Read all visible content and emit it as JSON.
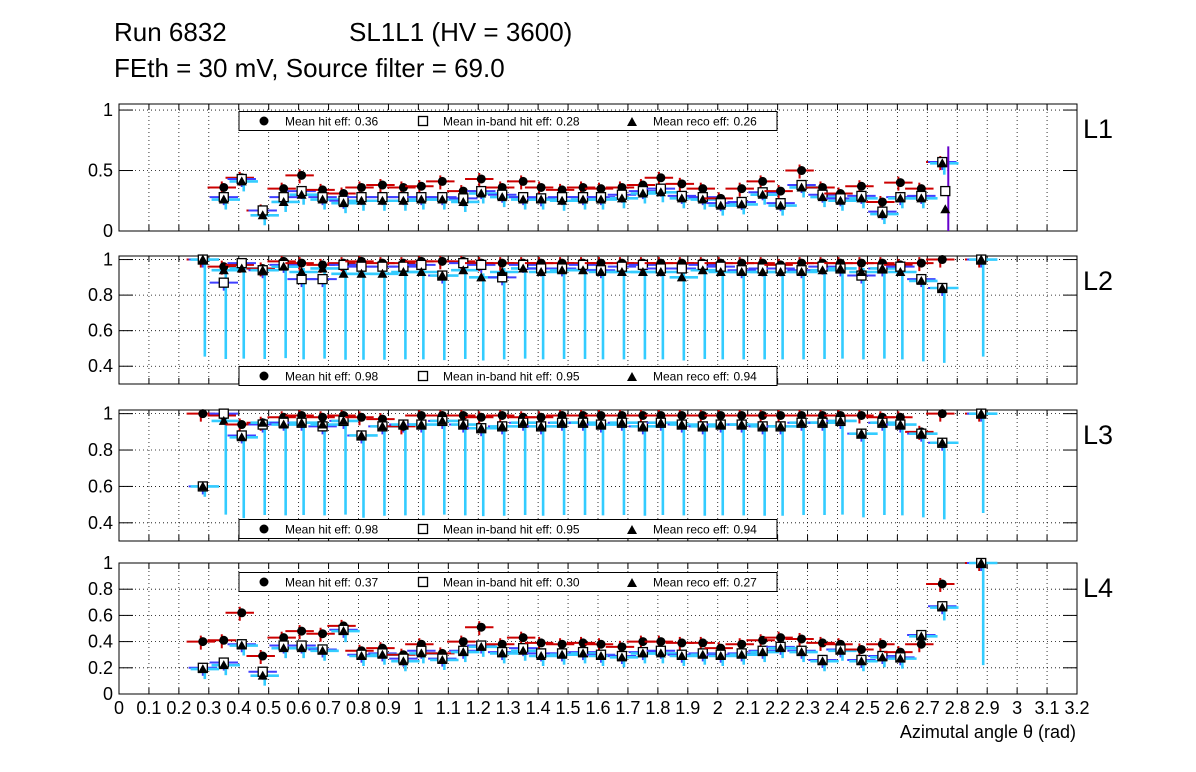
{
  "header": {
    "run": "Run 6832",
    "chamber": "SL1L1 (HV = 3600)",
    "conditions": "FEth = 30 mV, Source filter = 69.0"
  },
  "x_axis": {
    "title": "Azimutal angle θ (rad)",
    "range": [
      0,
      3.2
    ],
    "tick_labels": [
      "0",
      "0.1",
      "0.2",
      "0.3",
      "0.4",
      "0.5",
      "0.6",
      "0.7",
      "0.8",
      "0.9",
      "1",
      "1.1",
      "1.2",
      "1.3",
      "1.4",
      "1.5",
      "1.6",
      "1.7",
      "1.8",
      "1.9",
      "2",
      "2.1",
      "2.2",
      "2.3",
      "2.4",
      "2.5",
      "2.6",
      "2.7",
      "2.8",
      "2.9",
      "3",
      "3.1",
      "3.2"
    ]
  },
  "legend_labels": {
    "hit": "Mean hit  eff:",
    "inband": "Mean in-band hit eff:",
    "reco": "Mean reco eff:"
  },
  "colors": {
    "hit_err": "#cc0000",
    "inband_err": "#3f3fff",
    "reco_err": "#33ccff",
    "extra_err": "#6600cc",
    "marker": "#000000",
    "grid": "#000000"
  },
  "chart_data": [
    {
      "type": "scatter",
      "layer": "L1",
      "ylim": [
        0,
        1.05
      ],
      "y_ticks": [
        "0",
        "0.5",
        "1"
      ],
      "legend": {
        "hit": "0.36",
        "inband": "0.28",
        "reco": "0.26"
      },
      "x": [
        0.35,
        0.41,
        0.48,
        0.55,
        0.61,
        0.68,
        0.75,
        0.81,
        0.88,
        0.95,
        1.01,
        1.08,
        1.15,
        1.21,
        1.28,
        1.35,
        1.41,
        1.48,
        1.55,
        1.61,
        1.68,
        1.75,
        1.81,
        1.88,
        1.95,
        2.01,
        2.08,
        2.15,
        2.21,
        2.28,
        2.35,
        2.41,
        2.48,
        2.55,
        2.61,
        2.68,
        2.75
      ],
      "series": [
        {
          "name": "Mean hit eff",
          "values": [
            0.36,
            0.44,
            0.17,
            0.35,
            0.46,
            0.34,
            0.31,
            0.36,
            0.38,
            0.36,
            0.37,
            0.41,
            0.33,
            0.43,
            0.36,
            0.41,
            0.36,
            0.34,
            0.36,
            0.35,
            0.36,
            0.38,
            0.44,
            0.39,
            0.35,
            0.27,
            0.35,
            0.41,
            0.33,
            0.5,
            0.36,
            0.31,
            0.37,
            0.24,
            0.4,
            0.35,
            0.57
          ]
        },
        {
          "name": "Mean in-band hit eff",
          "values": [
            0.28,
            0.43,
            0.17,
            0.28,
            0.33,
            0.28,
            0.25,
            0.28,
            0.28,
            0.28,
            0.28,
            0.28,
            0.27,
            0.33,
            0.3,
            0.28,
            0.27,
            0.28,
            0.28,
            0.28,
            0.3,
            0.33,
            0.35,
            0.29,
            0.28,
            0.23,
            0.24,
            0.32,
            0.23,
            0.38,
            0.3,
            0.27,
            0.29,
            0.16,
            0.28,
            0.29,
            0.57
          ]
        },
        {
          "name": "Mean reco eff",
          "values": [
            0.26,
            0.41,
            0.13,
            0.24,
            0.3,
            0.26,
            0.23,
            0.25,
            0.25,
            0.25,
            0.26,
            0.26,
            0.24,
            0.31,
            0.28,
            0.26,
            0.26,
            0.25,
            0.26,
            0.26,
            0.27,
            0.31,
            0.32,
            0.27,
            0.26,
            0.21,
            0.22,
            0.3,
            0.21,
            0.36,
            0.28,
            0.25,
            0.27,
            0.14,
            0.27,
            0.27,
            0.56
          ]
        }
      ],
      "extra_points": {
        "x": [
          2.75
        ],
        "hit": [
          0.33
        ],
        "inband": [
          0.33
        ],
        "reco": [
          0.18
        ]
      }
    },
    {
      "type": "scatter",
      "layer": "L2",
      "ylim": [
        0.3,
        1.02
      ],
      "y_ticks": [
        "0.4",
        "0.6",
        "0.8",
        "1"
      ],
      "legend": {
        "hit": "0.98",
        "inband": "0.95",
        "reco": "0.94"
      },
      "x": [
        0.28,
        0.35,
        0.41,
        0.48,
        0.55,
        0.61,
        0.68,
        0.75,
        0.81,
        0.88,
        0.95,
        1.01,
        1.08,
        1.15,
        1.21,
        1.28,
        1.35,
        1.41,
        1.48,
        1.55,
        1.61,
        1.68,
        1.75,
        1.81,
        1.88,
        1.95,
        2.01,
        2.08,
        2.15,
        2.21,
        2.28,
        2.35,
        2.41,
        2.48,
        2.55,
        2.61,
        2.68,
        2.75,
        2.88
      ],
      "series": [
        {
          "name": "Mean hit eff",
          "values": [
            1.0,
            0.96,
            0.97,
            0.95,
            0.99,
            0.98,
            0.97,
            0.98,
            0.99,
            0.98,
            0.98,
            0.99,
            0.99,
            0.99,
            0.98,
            0.98,
            0.98,
            0.98,
            0.98,
            0.98,
            0.98,
            0.98,
            0.98,
            0.98,
            0.98,
            0.98,
            0.98,
            0.98,
            0.98,
            0.97,
            0.98,
            0.98,
            0.98,
            0.98,
            0.98,
            0.97,
            0.98,
            1.0,
            1.0
          ]
        },
        {
          "name": "Mean in-band hit eff",
          "values": [
            1.0,
            0.87,
            0.98,
            0.94,
            0.97,
            0.89,
            0.89,
            0.97,
            0.96,
            0.96,
            0.96,
            0.97,
            0.91,
            0.98,
            0.97,
            0.9,
            0.97,
            0.95,
            0.95,
            0.97,
            0.94,
            0.96,
            0.97,
            0.95,
            0.95,
            0.97,
            0.96,
            0.94,
            0.95,
            0.95,
            0.94,
            0.96,
            0.95,
            0.91,
            0.95,
            0.96,
            0.89,
            0.84,
            1.0
          ]
        },
        {
          "name": "Mean reco eff",
          "values": [
            1.0,
            0.94,
            0.95,
            0.94,
            0.96,
            0.93,
            0.95,
            0.92,
            0.92,
            0.92,
            0.93,
            0.93,
            0.91,
            0.94,
            0.9,
            0.93,
            0.95,
            0.93,
            0.94,
            0.94,
            0.93,
            0.93,
            0.93,
            0.93,
            0.9,
            0.94,
            0.93,
            0.93,
            0.93,
            0.93,
            0.93,
            0.94,
            0.95,
            0.93,
            0.95,
            0.93,
            0.88,
            0.84,
            1.0
          ]
        }
      ]
    },
    {
      "type": "scatter",
      "layer": "L3",
      "ylim": [
        0.3,
        1.02
      ],
      "y_ticks": [
        "0.4",
        "0.6",
        "0.8",
        "1"
      ],
      "legend": {
        "hit": "0.98",
        "inband": "0.95",
        "reco": "0.94"
      },
      "x": [
        0.28,
        0.35,
        0.41,
        0.48,
        0.55,
        0.61,
        0.68,
        0.75,
        0.81,
        0.88,
        0.95,
        1.01,
        1.08,
        1.15,
        1.21,
        1.28,
        1.35,
        1.41,
        1.48,
        1.55,
        1.61,
        1.68,
        1.75,
        1.81,
        1.88,
        1.95,
        2.01,
        2.08,
        2.15,
        2.21,
        2.28,
        2.35,
        2.41,
        2.48,
        2.55,
        2.61,
        2.68,
        2.75,
        2.88
      ],
      "series": [
        {
          "name": "Mean hit eff",
          "values": [
            1.0,
            0.99,
            0.94,
            0.95,
            0.98,
            0.99,
            0.98,
            0.99,
            0.98,
            0.97,
            0.93,
            0.99,
            0.99,
            0.99,
            0.98,
            0.99,
            0.98,
            0.98,
            0.99,
            0.99,
            0.99,
            0.99,
            0.99,
            0.99,
            0.99,
            0.99,
            0.99,
            0.99,
            0.99,
            0.99,
            0.99,
            0.99,
            0.99,
            0.99,
            0.98,
            0.98,
            0.9,
            1.0,
            1.0
          ]
        },
        {
          "name": "Mean in-band hit eff",
          "values": [
            0.6,
            1.0,
            0.88,
            0.94,
            0.95,
            0.95,
            0.93,
            0.96,
            0.88,
            0.93,
            0.94,
            0.94,
            0.96,
            0.94,
            0.92,
            0.93,
            0.95,
            0.93,
            0.95,
            0.95,
            0.94,
            0.95,
            0.93,
            0.95,
            0.94,
            0.93,
            0.94,
            0.94,
            0.93,
            0.93,
            0.95,
            0.95,
            0.96,
            0.89,
            0.95,
            0.94,
            0.89,
            0.84,
            1.0
          ]
        },
        {
          "name": "Mean reco eff",
          "values": [
            0.6,
            0.96,
            0.87,
            0.95,
            0.94,
            0.95,
            0.94,
            0.96,
            0.88,
            0.93,
            0.94,
            0.94,
            0.96,
            0.94,
            0.92,
            0.93,
            0.95,
            0.93,
            0.95,
            0.95,
            0.94,
            0.95,
            0.93,
            0.95,
            0.94,
            0.93,
            0.94,
            0.94,
            0.93,
            0.93,
            0.95,
            0.95,
            0.96,
            0.89,
            0.95,
            0.94,
            0.89,
            0.84,
            1.0
          ]
        }
      ]
    },
    {
      "type": "scatter",
      "layer": "L4",
      "ylim": [
        0,
        1.0
      ],
      "y_ticks": [
        "0",
        "0.2",
        "0.4",
        "0.6",
        "0.8",
        "1"
      ],
      "legend": {
        "hit": "0.37",
        "inband": "0.30",
        "reco": "0.27"
      },
      "x": [
        0.28,
        0.35,
        0.41,
        0.48,
        0.55,
        0.61,
        0.68,
        0.75,
        0.81,
        0.88,
        0.95,
        1.01,
        1.08,
        1.15,
        1.21,
        1.28,
        1.35,
        1.41,
        1.48,
        1.55,
        1.61,
        1.68,
        1.75,
        1.81,
        1.88,
        1.95,
        2.01,
        2.08,
        2.15,
        2.21,
        2.28,
        2.35,
        2.41,
        2.48,
        2.55,
        2.61,
        2.68,
        2.75,
        2.88
      ],
      "series": [
        {
          "name": "Mean hit eff",
          "values": [
            0.4,
            0.41,
            0.62,
            0.29,
            0.43,
            0.48,
            0.46,
            0.52,
            0.33,
            0.35,
            0.3,
            0.38,
            0.31,
            0.4,
            0.51,
            0.38,
            0.43,
            0.39,
            0.38,
            0.39,
            0.38,
            0.36,
            0.4,
            0.4,
            0.39,
            0.39,
            0.35,
            0.38,
            0.41,
            0.43,
            0.42,
            0.39,
            0.38,
            0.34,
            0.38,
            0.32,
            0.38,
            0.84,
            1.0
          ]
        },
        {
          "name": "Mean in-band hit eff",
          "values": [
            0.2,
            0.24,
            0.38,
            0.17,
            0.37,
            0.37,
            0.34,
            0.49,
            0.3,
            0.31,
            0.27,
            0.33,
            0.27,
            0.33,
            0.37,
            0.32,
            0.35,
            0.31,
            0.31,
            0.32,
            0.3,
            0.29,
            0.32,
            0.33,
            0.3,
            0.31,
            0.3,
            0.31,
            0.33,
            0.36,
            0.33,
            0.26,
            0.34,
            0.26,
            0.29,
            0.28,
            0.45,
            0.67,
            1.0
          ]
        },
        {
          "name": "Mean reco eff",
          "values": [
            0.19,
            0.22,
            0.37,
            0.14,
            0.35,
            0.35,
            0.33,
            0.48,
            0.29,
            0.3,
            0.25,
            0.31,
            0.26,
            0.32,
            0.36,
            0.31,
            0.33,
            0.29,
            0.3,
            0.31,
            0.29,
            0.28,
            0.31,
            0.31,
            0.29,
            0.3,
            0.29,
            0.3,
            0.32,
            0.35,
            0.32,
            0.25,
            0.33,
            0.25,
            0.28,
            0.27,
            0.44,
            0.66,
            1.0
          ]
        }
      ]
    }
  ]
}
